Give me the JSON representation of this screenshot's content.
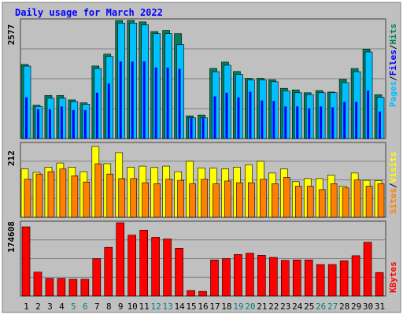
{
  "title": "Daily usage for March 2022",
  "colors": {
    "hits": "#00805c",
    "files": "#0000ff",
    "pages": "#00c0ff",
    "visits": "#ffff00",
    "sites": "#ff8000",
    "kbytes": "#ff0000",
    "background": "#c0c0c0",
    "grid": "#808080",
    "weekend": "#008080"
  },
  "side_labels": {
    "pages": "Pages",
    "files": "Files",
    "hits": "Hits",
    "sites": "Sites",
    "visits": "Visits",
    "kbytes": "KBytes",
    "sep": "/"
  },
  "chart_data": [
    {
      "type": "bar",
      "categories": [
        "1",
        "2",
        "3",
        "4",
        "5",
        "6",
        "7",
        "8",
        "9",
        "10",
        "11",
        "12",
        "13",
        "14",
        "15",
        "16",
        "17",
        "18",
        "19",
        "20",
        "21",
        "22",
        "23",
        "24",
        "25",
        "26",
        "27",
        "28",
        "29",
        "30",
        "31"
      ],
      "weekend_days": [
        "5",
        "6",
        "12",
        "13",
        "19",
        "20",
        "26",
        "27"
      ],
      "ymax_label": "2577",
      "ylim": [
        0,
        2577
      ],
      "series": [
        {
          "name": "Hits",
          "values": [
            1617,
            728,
            940,
            940,
            843,
            780,
            1583,
            1843,
            2577,
            2577,
            2545,
            2335,
            2361,
            2290,
            495,
            513,
            1530,
            1668,
            1463,
            1315,
            1315,
            1281,
            1096,
            1062,
            1000,
            1047,
            1015,
            1291,
            1528,
            1950,
            957
          ]
        },
        {
          "name": "Files",
          "values": [
            900,
            640,
            640,
            700,
            620,
            620,
            1000,
            1200,
            1680,
            1680,
            1680,
            1550,
            1550,
            1520,
            440,
            440,
            920,
            1000,
            900,
            1020,
            830,
            820,
            700,
            700,
            660,
            700,
            680,
            800,
            800,
            1050,
            590
          ]
        },
        {
          "name": "Pages",
          "values": [
            1580,
            700,
            880,
            880,
            805,
            750,
            1530,
            1790,
            2520,
            2520,
            2480,
            2290,
            2290,
            2050,
            450,
            450,
            1460,
            1600,
            1400,
            1280,
            1280,
            1240,
            1040,
            1000,
            960,
            1000,
            1000,
            1220,
            1460,
            1890,
            900
          ]
        }
      ]
    },
    {
      "type": "bar",
      "categories": [
        "1",
        "2",
        "3",
        "4",
        "5",
        "6",
        "7",
        "8",
        "9",
        "10",
        "11",
        "12",
        "13",
        "14",
        "15",
        "16",
        "17",
        "18",
        "19",
        "20",
        "21",
        "22",
        "23",
        "24",
        "25",
        "26",
        "27",
        "28",
        "29",
        "30",
        "31"
      ],
      "ymax_label": "212",
      "ylim": [
        0,
        212
      ],
      "series": [
        {
          "name": "Visits",
          "values": [
            140,
            130,
            145,
            157,
            145,
            132,
            205,
            155,
            187,
            145,
            148,
            144,
            148,
            132,
            162,
            143,
            142,
            140,
            145,
            152,
            162,
            128,
            140,
            103,
            112,
            112,
            122,
            90,
            128,
            107,
            106
          ]
        },
        {
          "name": "Sites",
          "values": [
            110,
            125,
            132,
            140,
            120,
            102,
            155,
            125,
            112,
            112,
            100,
            97,
            110,
            107,
            97,
            110,
            97,
            105,
            100,
            100,
            110,
            97,
            115,
            90,
            90,
            80,
            97,
            85,
            108,
            90,
            97
          ]
        }
      ]
    },
    {
      "type": "bar",
      "categories": [
        "1",
        "2",
        "3",
        "4",
        "5",
        "6",
        "7",
        "8",
        "9",
        "10",
        "11",
        "12",
        "13",
        "14",
        "15",
        "16",
        "17",
        "18",
        "19",
        "20",
        "21",
        "22",
        "23",
        "24",
        "25",
        "26",
        "27",
        "28",
        "29",
        "30",
        "31"
      ],
      "ymax_label": "174608",
      "ylim": [
        0,
        174608
      ],
      "series": [
        {
          "name": "KBytes",
          "values": [
            165000,
            57000,
            42000,
            42000,
            40000,
            40000,
            89000,
            116000,
            174608,
            145000,
            157000,
            140000,
            136000,
            114000,
            13000,
            11000,
            86000,
            89000,
            99000,
            102000,
            97000,
            92000,
            85000,
            86000,
            86000,
            75000,
            75000,
            84000,
            96000,
            128000,
            56000
          ]
        }
      ]
    }
  ]
}
